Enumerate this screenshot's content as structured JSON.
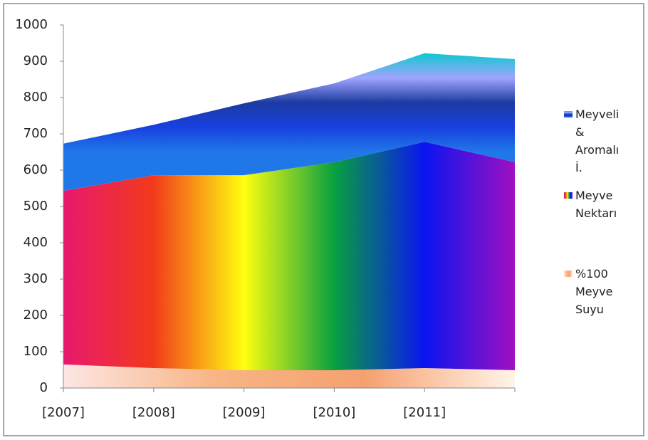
{
  "chart_data": {
    "type": "stacked_area",
    "categories": [
      "[2007]",
      "[2008]",
      "[2009]",
      "[2010]",
      "[2011]",
      null
    ],
    "series": [
      {
        "name": "%100 Meyve Suyu",
        "colors": [
          "#fde6e4",
          "#f8b585",
          "#f6a070",
          "#fff4e8"
        ],
        "gradient": "horizontal",
        "values": [
          65,
          55,
          49,
          49,
          55,
          49
        ]
      },
      {
        "name": "Meyve Nektarı",
        "colors": [
          "#e8186e",
          "#f23a1c",
          "#ffff10",
          "#08a040",
          "#0a14f0",
          "#a010c0"
        ],
        "gradient": "horizontal",
        "values": [
          478,
          531,
          537,
          573,
          623,
          573
        ]
      },
      {
        "name": "Meyveli & Aromalı İ.",
        "colors": [
          "#10c8d0",
          "#a0a4ff",
          "#1c3aa0",
          "#1840e0",
          "#2078e8"
        ],
        "gradient": "vertical",
        "values": [
          130,
          139,
          198,
          217,
          244,
          284
        ]
      }
    ],
    "ylim": [
      0,
      1000
    ],
    "yticks": [
      0,
      100,
      200,
      300,
      400,
      500,
      600,
      700,
      800,
      900,
      1000
    ],
    "grid": false
  }
}
